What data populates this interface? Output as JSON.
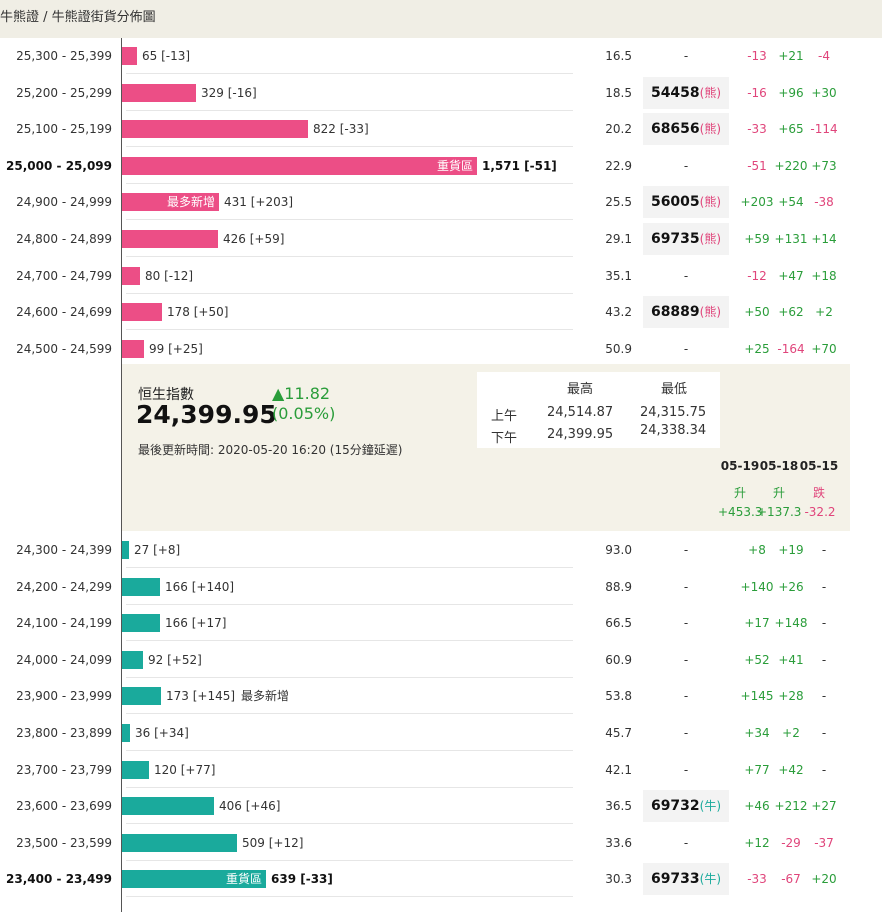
{
  "breadcrumb": "牛熊證 / 牛熊證街貨分佈圖",
  "colors": {
    "bear": "#ec4e86",
    "bull": "#1aaa9c",
    "up": "#2a9d3a",
    "down": "#e0457b"
  },
  "bear_rows": [
    {
      "range": "25,300 - 25,399",
      "count": "65 [-13]",
      "ratio": "16.5",
      "code": "-",
      "type": "",
      "c1": "-13",
      "c2": "+21",
      "c3": "-4"
    },
    {
      "range": "25,200 - 25,299",
      "count": "329 [-16]",
      "ratio": "18.5",
      "code": "54458",
      "type": "(熊)",
      "c1": "-16",
      "c2": "+96",
      "c3": "+30"
    },
    {
      "range": "25,100 - 25,199",
      "count": "822 [-33]",
      "ratio": "20.2",
      "code": "68656",
      "type": "(熊)",
      "c1": "-33",
      "c2": "+65",
      "c3": "-114"
    },
    {
      "range": "25,000 - 25,099",
      "count": "1,571 [-51]",
      "ratio": "22.9",
      "code": "-",
      "type": "",
      "c1": "-51",
      "c2": "+220",
      "c3": "+73",
      "tag": "重貨區",
      "bold": true
    },
    {
      "range": "24,900 - 24,999",
      "count": "431 [+203]",
      "ratio": "25.5",
      "code": "56005",
      "type": "(熊)",
      "c1": "+203",
      "c2": "+54",
      "c3": "-38",
      "tag": "最多新增"
    },
    {
      "range": "24,800 - 24,899",
      "count": "426 [+59]",
      "ratio": "29.1",
      "code": "69735",
      "type": "(熊)",
      "c1": "+59",
      "c2": "+131",
      "c3": "+14"
    },
    {
      "range": "24,700 - 24,799",
      "count": "80 [-12]",
      "ratio": "35.1",
      "code": "-",
      "type": "",
      "c1": "-12",
      "c2": "+47",
      "c3": "+18"
    },
    {
      "range": "24,600 - 24,699",
      "count": "178 [+50]",
      "ratio": "43.2",
      "code": "68889",
      "type": "(熊)",
      "c1": "+50",
      "c2": "+62",
      "c3": "+2"
    },
    {
      "range": "24,500 - 24,599",
      "count": "99 [+25]",
      "ratio": "50.9",
      "code": "-",
      "type": "",
      "c1": "+25",
      "c2": "-164",
      "c3": "+70"
    }
  ],
  "index": {
    "name": "恒生指數",
    "value": "24,399.95",
    "change": "▲11.82",
    "change_pct": "(0.05%)",
    "updated": "最後更新時間: 2020-05-20 16:20 (15分鐘延遲)",
    "hl_high": "最高",
    "hl_low": "最低",
    "am_label": "上午",
    "am_high": "24,514.87",
    "am_low": "24,315.75",
    "pm_label": "下午",
    "pm_high": "24,399.95",
    "pm_low": "24,338.34",
    "days": [
      {
        "date": "05-19",
        "dir": "升",
        "val": "+453.3"
      },
      {
        "date": "05-18",
        "dir": "升",
        "val": "+137.3"
      },
      {
        "date": "05-15",
        "dir": "跌",
        "val": "-32.2"
      }
    ]
  },
  "bull_rows": [
    {
      "range": "24,300 - 24,399",
      "count": "27 [+8]",
      "ratio": "93.0",
      "code": "-",
      "type": "",
      "c1": "+8",
      "c2": "+19",
      "c3": "-"
    },
    {
      "range": "24,200 - 24,299",
      "count": "166 [+140]",
      "ratio": "88.9",
      "code": "-",
      "type": "",
      "c1": "+140",
      "c2": "+26",
      "c3": "-"
    },
    {
      "range": "24,100 - 24,199",
      "count": "166 [+17]",
      "ratio": "66.5",
      "code": "-",
      "type": "",
      "c1": "+17",
      "c2": "+148",
      "c3": "-"
    },
    {
      "range": "24,000 - 24,099",
      "count": "92 [+52]",
      "ratio": "60.9",
      "code": "-",
      "type": "",
      "c1": "+52",
      "c2": "+41",
      "c3": "-"
    },
    {
      "range": "23,900 - 23,999",
      "count": "173 [+145]",
      "ratio": "53.8",
      "code": "-",
      "type": "",
      "c1": "+145",
      "c2": "+28",
      "c3": "-",
      "extra": "最多新增"
    },
    {
      "range": "23,800 - 23,899",
      "count": "36 [+34]",
      "ratio": "45.7",
      "code": "-",
      "type": "",
      "c1": "+34",
      "c2": "+2",
      "c3": "-"
    },
    {
      "range": "23,700 - 23,799",
      "count": "120 [+77]",
      "ratio": "42.1",
      "code": "-",
      "type": "",
      "c1": "+77",
      "c2": "+42",
      "c3": "-"
    },
    {
      "range": "23,600 - 23,699",
      "count": "406 [+46]",
      "ratio": "36.5",
      "code": "69732",
      "type": "(牛)",
      "c1": "+46",
      "c2": "+212",
      "c3": "+27"
    },
    {
      "range": "23,500 - 23,599",
      "count": "509 [+12]",
      "ratio": "33.6",
      "code": "-",
      "type": "",
      "c1": "+12",
      "c2": "-29",
      "c3": "-37"
    },
    {
      "range": "23,400 - 23,499",
      "count": "639 [-33]",
      "ratio": "30.3",
      "code": "69733",
      "type": "(牛)",
      "c1": "-33",
      "c2": "-67",
      "c3": "+20",
      "tag": "重貨區",
      "bold": true
    }
  ]
}
